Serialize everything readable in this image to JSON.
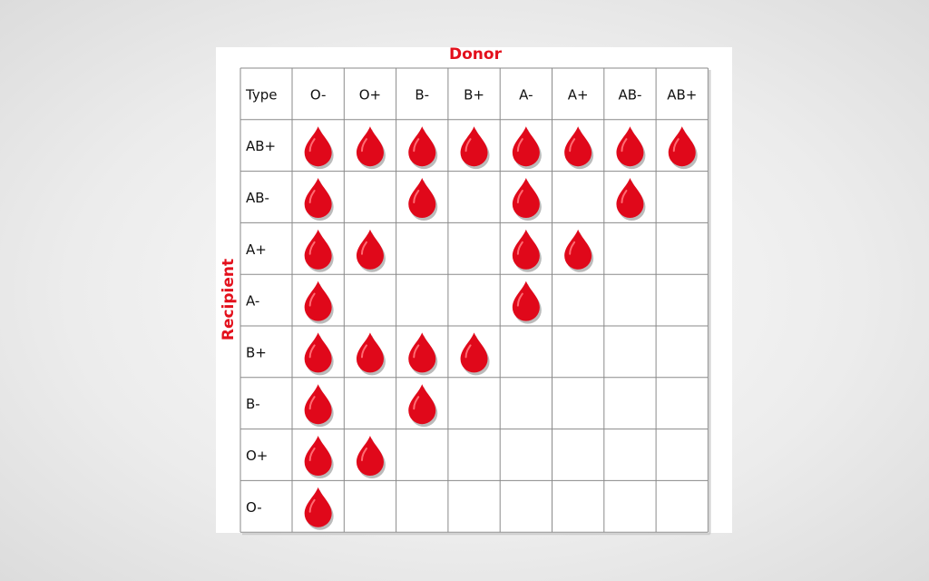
{
  "title": "Donor",
  "side_label": "Recipient",
  "header": [
    "Type",
    "O-",
    "O+",
    "B-",
    "B+",
    "A-",
    "A+",
    "AB-",
    "AB+"
  ],
  "rows": [
    {
      "label": "AB+",
      "cells": [
        true,
        true,
        true,
        true,
        true,
        true,
        true,
        true
      ]
    },
    {
      "label": "AB-",
      "cells": [
        true,
        false,
        true,
        false,
        true,
        false,
        true,
        false
      ]
    },
    {
      "label": "A+",
      "cells": [
        true,
        true,
        false,
        false,
        true,
        true,
        false,
        false
      ]
    },
    {
      "label": "A-",
      "cells": [
        true,
        false,
        false,
        false,
        true,
        false,
        false,
        false
      ]
    },
    {
      "label": "B+",
      "cells": [
        true,
        true,
        true,
        true,
        false,
        false,
        false,
        false
      ]
    },
    {
      "label": "B-",
      "cells": [
        true,
        false,
        true,
        false,
        false,
        false,
        false,
        false
      ]
    },
    {
      "label": "O+",
      "cells": [
        true,
        true,
        false,
        false,
        false,
        false,
        false,
        false
      ]
    },
    {
      "label": "O-",
      "cells": [
        true,
        false,
        false,
        false,
        false,
        false,
        false,
        false
      ]
    }
  ]
}
